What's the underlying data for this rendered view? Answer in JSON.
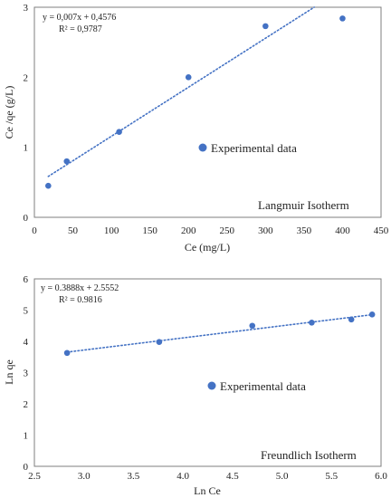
{
  "chart_data": [
    {
      "type": "scatter",
      "title": "",
      "xlabel": "Ce (mg/L)",
      "ylabel": "Ce /qe (g/L)",
      "xlim": [
        0,
        450
      ],
      "ylim": [
        0,
        3
      ],
      "xticks": [
        "0",
        "50",
        "100",
        "150",
        "200",
        "250",
        "300",
        "350",
        "400",
        "450"
      ],
      "yticks": [
        "0",
        "1",
        "2",
        "3"
      ],
      "grid": false,
      "series": [
        {
          "name": "Experimental data",
          "x": [
            18,
            42,
            110,
            200,
            300,
            400
          ],
          "y": [
            0.45,
            0.8,
            1.22,
            2.0,
            2.73,
            2.84
          ]
        }
      ],
      "trendline": {
        "slope": 0.007,
        "intercept": 0.4576,
        "x_range": [
          18,
          450
        ],
        "style": "dotted"
      },
      "equation": "y = 0,007x + 0,4576",
      "r2": "R² = 0,9787",
      "annotation": "Langmuir Isotherm",
      "legend_position": "center",
      "color": "#4472c4"
    },
    {
      "type": "scatter",
      "title": "",
      "xlabel": "Ln Ce",
      "ylabel": "Ln qe",
      "xlim": [
        2.5,
        6.0
      ],
      "ylim": [
        0,
        6
      ],
      "xticks": [
        "2.5",
        "3.0",
        "3.5",
        "4.0",
        "4.5",
        "5.0",
        "5.5",
        "6.0"
      ],
      "yticks": [
        "0",
        "1",
        "2",
        "3",
        "4",
        "5",
        "6"
      ],
      "grid": false,
      "series": [
        {
          "name": "Experimental data",
          "x": [
            2.83,
            3.76,
            4.7,
            5.3,
            5.7,
            5.91
          ],
          "y": [
            3.63,
            3.98,
            4.5,
            4.6,
            4.7,
            4.86
          ]
        }
      ],
      "trendline": {
        "slope": 0.3888,
        "intercept": 2.5552,
        "x_range": [
          2.83,
          5.91
        ],
        "style": "dotted"
      },
      "equation": "y = 0.3888x + 2.5552",
      "r2": "R² = 0.9816",
      "annotation": "Freundlich Isotherm",
      "legend_position": "center",
      "color": "#4472c4"
    }
  ]
}
